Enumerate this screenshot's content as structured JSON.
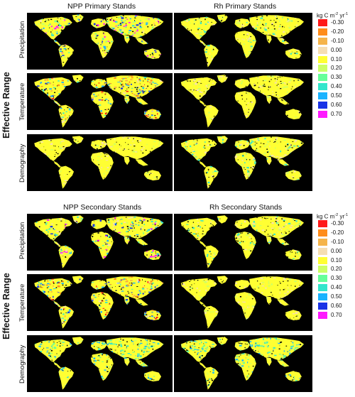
{
  "legend": {
    "title_prefix": "kg C m",
    "title_exp1": "-2",
    "title_mid": " yr",
    "title_exp2": "-1",
    "items": [
      {
        "label": "-0.30",
        "color": "#ff1a1a"
      },
      {
        "label": "-0.20",
        "color": "#ff8c1a"
      },
      {
        "label": "-0.10",
        "color": "#f5b44a"
      },
      {
        "label": "0.00",
        "color": "#f5deb3"
      },
      {
        "label": "0.10",
        "color": "#ffff33"
      },
      {
        "label": "0.20",
        "color": "#ccff66"
      },
      {
        "label": "0.30",
        "color": "#66ff99"
      },
      {
        "label": "0.40",
        "color": "#33e6cc"
      },
      {
        "label": "0.50",
        "color": "#1ab3ff"
      },
      {
        "label": "0.60",
        "color": "#1a33e6"
      },
      {
        "label": "0.70",
        "color": "#ff1aff"
      }
    ]
  },
  "side_label": "Effective Range",
  "rows": [
    "Precipitation",
    "Temperature",
    "Demography"
  ],
  "blocks": [
    {
      "left_title": "NPP Primary Stands",
      "right_title": "Rh Primary Stands"
    },
    {
      "left_title": "NPP Secondary Stands",
      "right_title": "Rh Secondary Stands"
    }
  ],
  "map_palettes": {
    "npp_precipitation": [
      "#ffff33",
      "#ffff33",
      "#ccff66",
      "#66ff99",
      "#33e6cc",
      "#1ab3ff",
      "#1a33e6",
      "#ff1aff",
      "#f5deb3"
    ],
    "npp_temperature": [
      "#ffff33",
      "#ffff33",
      "#f5deb3",
      "#f5b44a",
      "#ff8c1a",
      "#ff1a1a",
      "#33e6cc",
      "#1ab3ff",
      "#1a33e6"
    ],
    "npp_demography": [
      "#ffff33",
      "#ffff33",
      "#ffff33",
      "#f5deb3",
      "#ccff66"
    ],
    "rh_precipitation": [
      "#ffff33",
      "#ffff33",
      "#ffff33",
      "#ccff66",
      "#33e6cc",
      "#f5deb3"
    ],
    "rh_temperature": [
      "#ffff33",
      "#ffff33",
      "#ffff33",
      "#f5deb3",
      "#ccff66"
    ],
    "rh_demography": [
      "#ffff33",
      "#ffff33",
      "#ccff66",
      "#33e6cc",
      "#f5deb3"
    ],
    "sec_demography": [
      "#ffff33",
      "#ffff33",
      "#33e6cc",
      "#1ab3ff",
      "#66ff99",
      "#ccff66"
    ]
  }
}
